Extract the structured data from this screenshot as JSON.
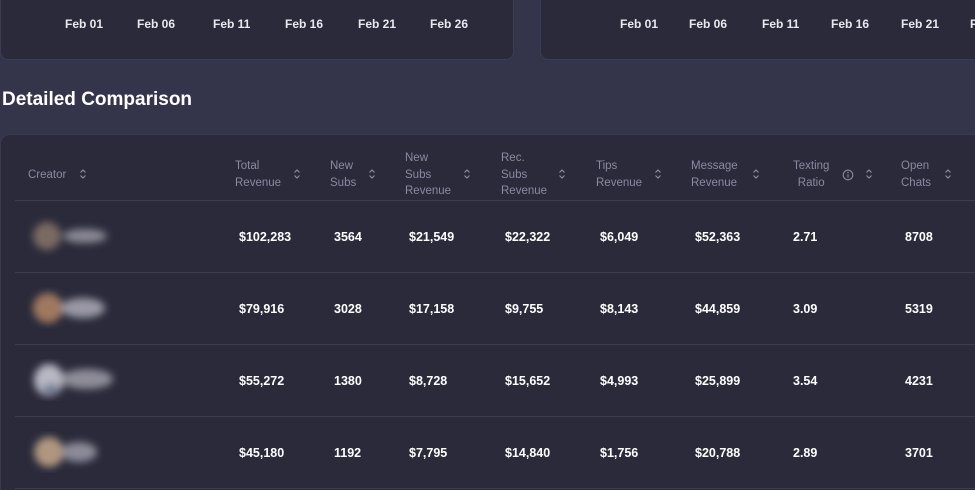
{
  "charts": [
    {
      "x_ticks": [
        "Feb 01",
        "Feb 06",
        "Feb 11",
        "Feb 16",
        "Feb 21",
        "Feb 26"
      ]
    },
    {
      "x_ticks": [
        "Feb 01",
        "Feb 06",
        "Feb 11",
        "Feb 16",
        "Feb 21",
        "F"
      ]
    }
  ],
  "section_title": "Detailed Comparison",
  "table": {
    "headers": {
      "creator": "Creator",
      "total_revenue": [
        "Total",
        "Revenue"
      ],
      "new_subs": [
        "New",
        "Subs"
      ],
      "new_subs_revenue": [
        "New",
        "Subs",
        "Revenue"
      ],
      "rec_subs_revenue": [
        "Rec.",
        "Subs",
        "Revenue"
      ],
      "tips_revenue": [
        "Tips",
        "Revenue"
      ],
      "message_revenue": [
        "Message",
        "Revenue"
      ],
      "texting_ratio": [
        "Texting",
        "Ratio"
      ],
      "open_chats": [
        "Open",
        "Chats"
      ]
    },
    "rows": [
      [
        "$102,283",
        "3564",
        "$21,549",
        "$22,322",
        "$6,049",
        "$52,363",
        "2.71",
        "8708"
      ],
      [
        "$79,916",
        "3028",
        "$17,158",
        "$9,755",
        "$8,143",
        "$44,859",
        "3.09",
        "5319"
      ],
      [
        "$55,272",
        "1380",
        "$8,728",
        "$15,652",
        "$4,993",
        "$25,899",
        "3.54",
        "4231"
      ],
      [
        "$45,180",
        "1192",
        "$7,795",
        "$14,840",
        "$1,756",
        "$20,788",
        "2.89",
        "3701"
      ]
    ]
  },
  "colors": {
    "page_bg": "#34344a",
    "card_bg": "#2a2a3b",
    "header_text": "#8a8aa0",
    "cell_text": "#ffffff"
  }
}
